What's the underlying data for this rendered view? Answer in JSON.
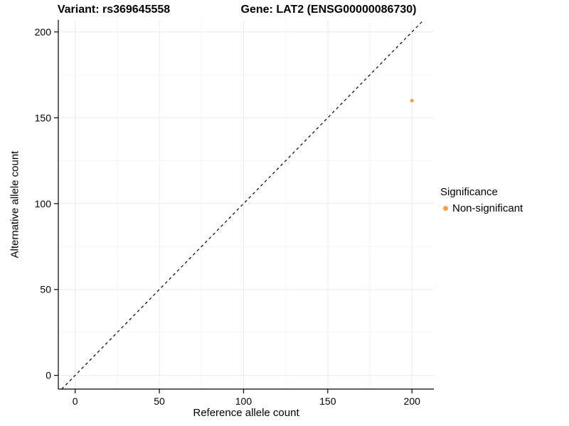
{
  "chart_data": {
    "type": "scatter",
    "title_left": "Variant: rs369645558",
    "title_right": "Gene: LAT2 (ENSG00000086730)",
    "xlabel": "Reference allele count",
    "ylabel": "Alternative allele count",
    "xlim": [
      -10,
      213
    ],
    "ylim": [
      -8,
      207
    ],
    "x_ticks": [
      0,
      50,
      100,
      150,
      200
    ],
    "y_ticks": [
      0,
      50,
      100,
      150,
      200
    ],
    "grid": true,
    "grid_major_color": "#ebebeb",
    "grid_minor_color": "#f5f5f5",
    "identity_line": {
      "type": "y=x",
      "style": "dashed",
      "color": "#000000"
    },
    "series": [
      {
        "name": "Non-significant",
        "color": "#F9A242",
        "points": [
          {
            "x": 200,
            "y": 160
          }
        ]
      }
    ],
    "legend": {
      "title": "Significance",
      "position": "right",
      "entries": [
        {
          "label": "Non-significant",
          "color": "#F9A242"
        }
      ]
    }
  }
}
